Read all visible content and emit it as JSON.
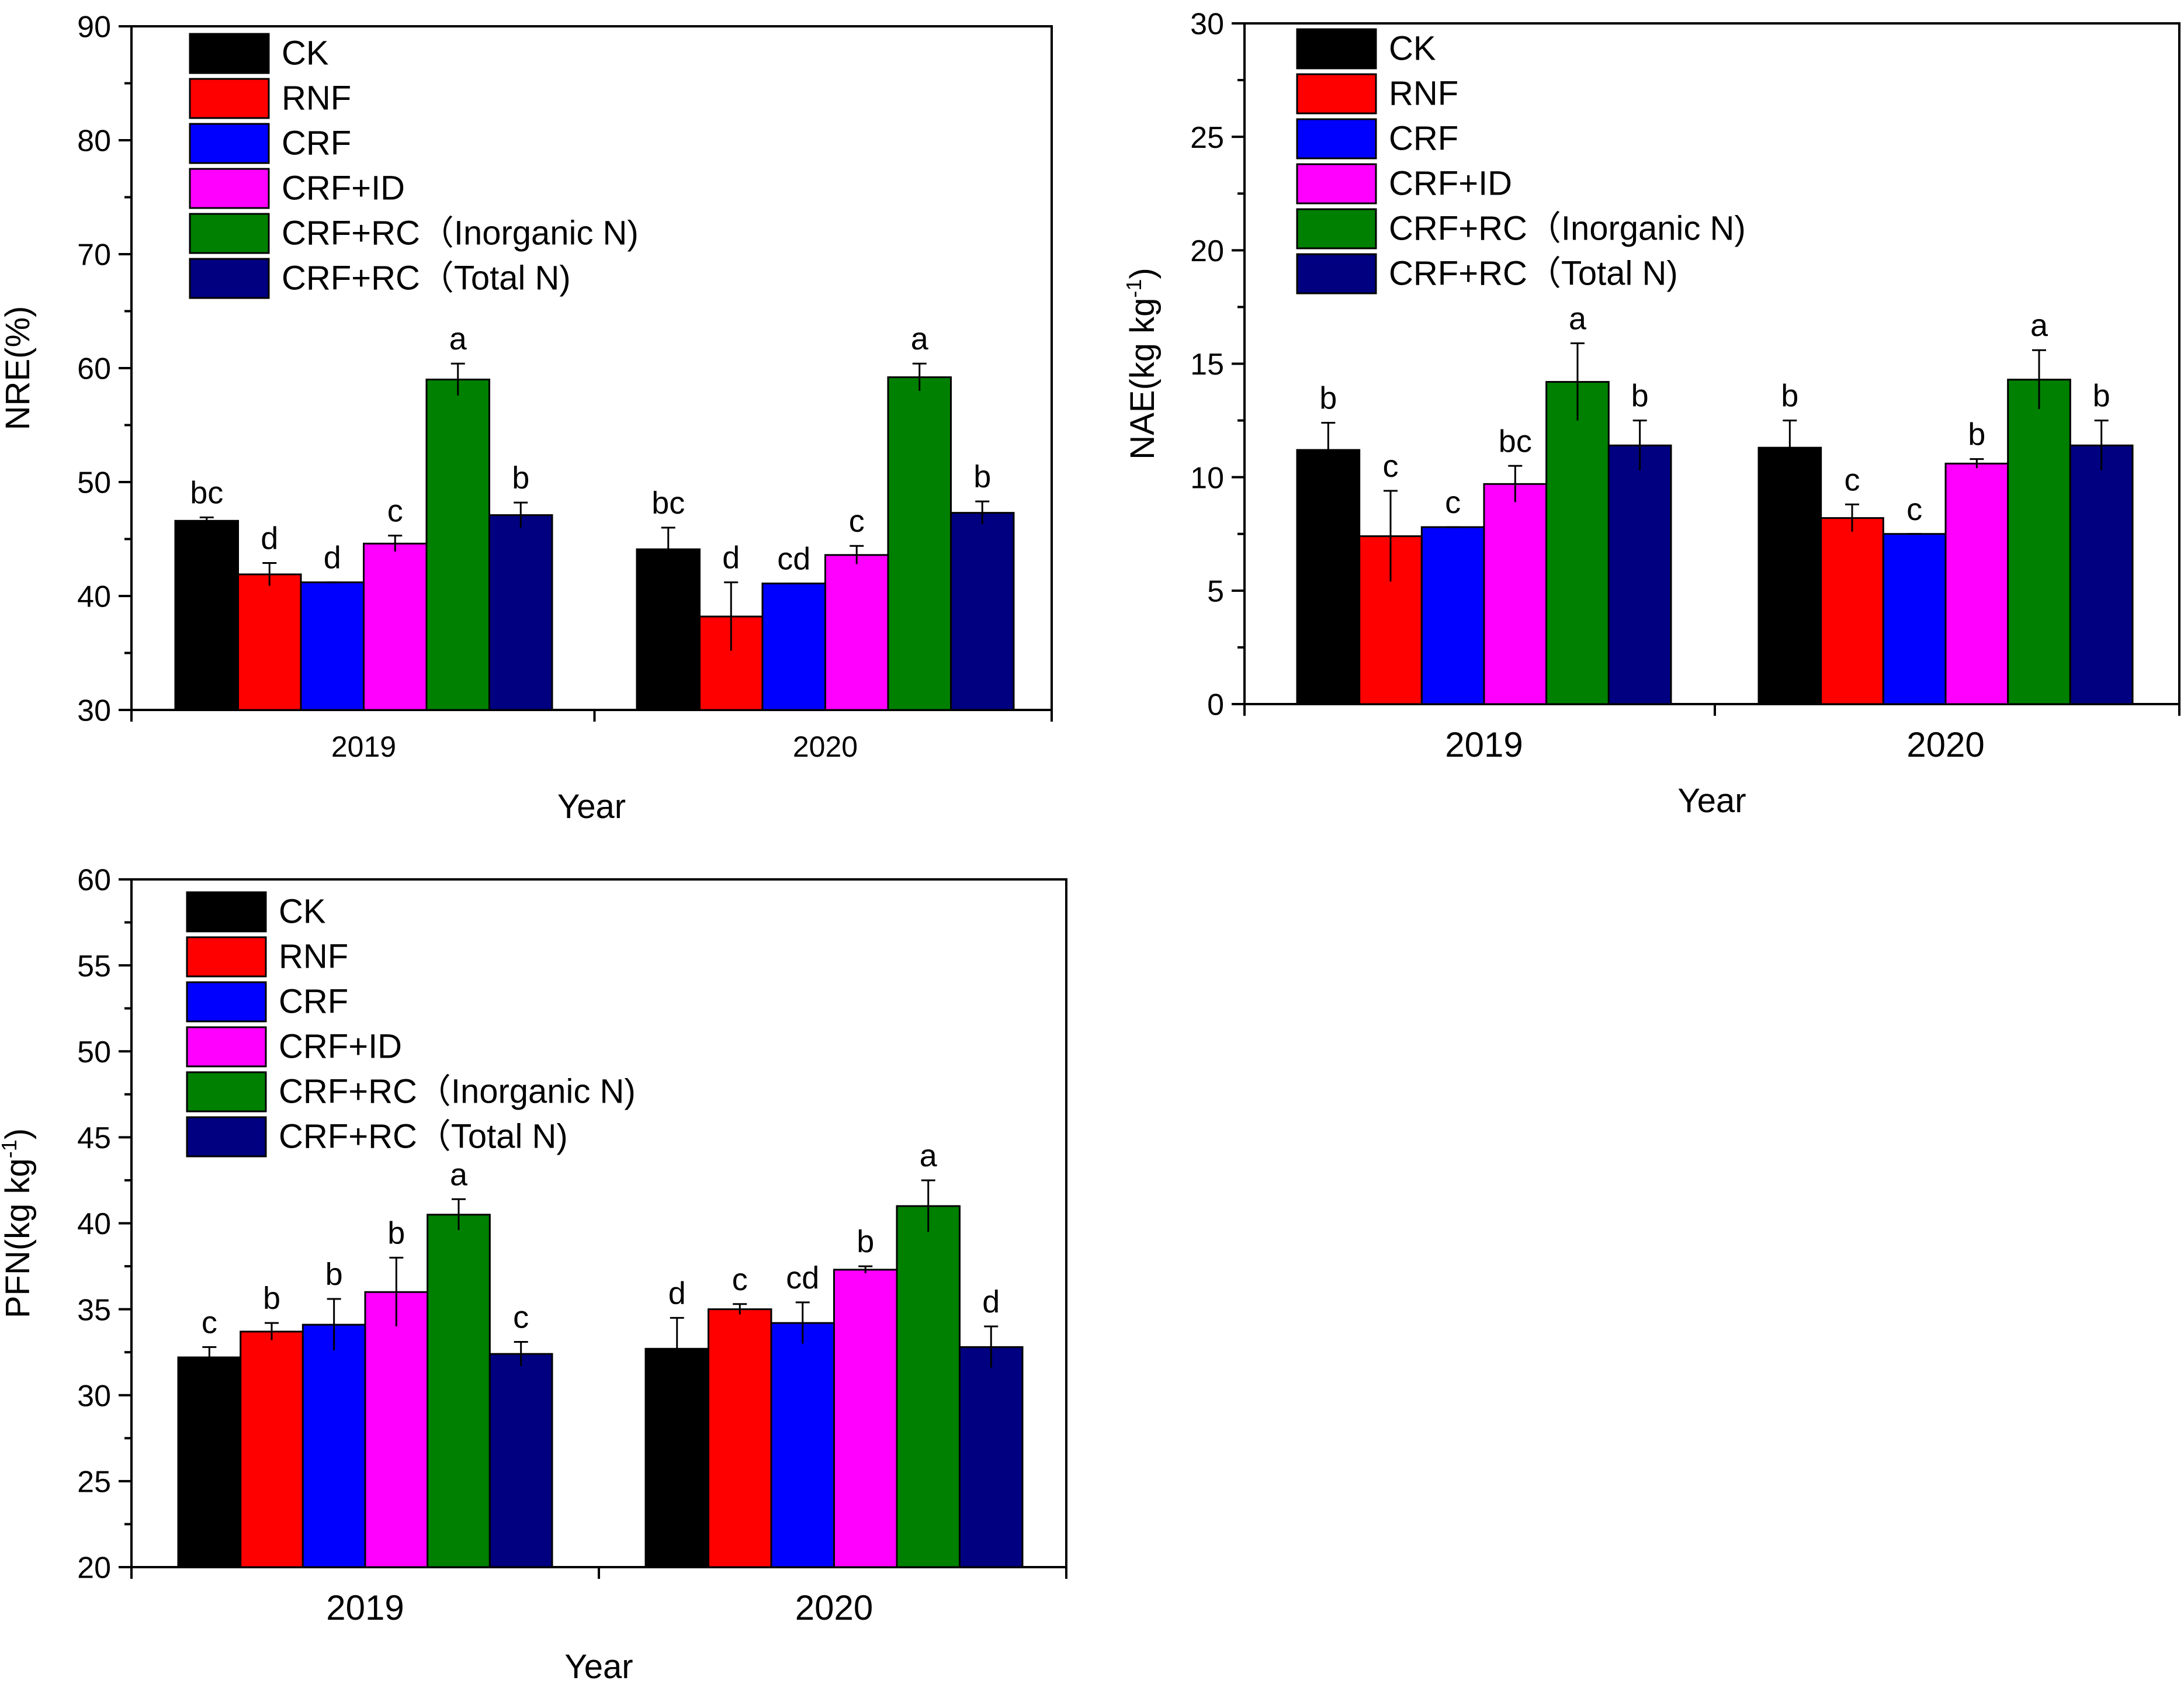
{
  "colors": {
    "CK": "#000000",
    "RNF": "#ff0000",
    "CRF": "#0000ff",
    "CRF+ID": "#ff00ff",
    "CRF+RC_inorganic": "#008000",
    "CRF+RC_total": "#000080"
  },
  "chart_data": [
    {
      "id": "nre",
      "type": "bar",
      "ylabel": "NRE(%)",
      "ylabel_sup": "",
      "ylabel_tail": "",
      "xlabel": "Year",
      "categories": [
        "2019",
        "2020"
      ],
      "ylim": [
        30,
        90
      ],
      "yticks": [
        30,
        40,
        50,
        60,
        70,
        80,
        90
      ],
      "legend": [
        "CK",
        "RNF",
        "CRF",
        "CRF+ID",
        "CRF+RC（Inorganic N)",
        "CRF+RC（Total N)"
      ],
      "series": [
        {
          "name": "CK",
          "values": [
            46.6,
            44.1
          ],
          "errors": [
            0.3,
            1.9
          ],
          "letters": [
            "bc",
            "bc"
          ]
        },
        {
          "name": "RNF",
          "values": [
            41.9,
            38.2
          ],
          "errors": [
            1.0,
            3.0
          ],
          "letters": [
            "d",
            "d"
          ]
        },
        {
          "name": "CRF",
          "values": [
            41.2,
            41.1
          ],
          "errors": [
            0.0,
            0.0
          ],
          "letters": [
            "d",
            "cd"
          ]
        },
        {
          "name": "CRF+ID",
          "values": [
            44.6,
            43.6
          ],
          "errors": [
            0.7,
            0.8
          ],
          "letters": [
            "c",
            "c"
          ]
        },
        {
          "name": "CRF+RC（Inorganic N)",
          "values": [
            59.0,
            59.2
          ],
          "errors": [
            1.4,
            1.2
          ],
          "letters": [
            "a",
            "a"
          ]
        },
        {
          "name": "CRF+RC（Total N)",
          "values": [
            47.1,
            47.3
          ],
          "errors": [
            1.1,
            1.0
          ],
          "letters": [
            "b",
            "b"
          ]
        }
      ]
    },
    {
      "id": "nae",
      "type": "bar",
      "ylabel": "NAE(kg kg",
      "ylabel_sup": "-1",
      "ylabel_tail": ")",
      "xlabel": "Year",
      "categories": [
        "2019",
        "2020"
      ],
      "ylim": [
        0,
        30
      ],
      "yticks": [
        0,
        5,
        10,
        15,
        20,
        25,
        30
      ],
      "legend": [
        "CK",
        "RNF",
        "CRF",
        "CRF+ID",
        "CRF+RC（Inorganic N)",
        "CRF+RC（Total N)"
      ],
      "series": [
        {
          "name": "CK",
          "values": [
            11.2,
            11.3
          ],
          "errors": [
            1.2,
            1.2
          ],
          "letters": [
            "b",
            "b"
          ]
        },
        {
          "name": "RNF",
          "values": [
            7.4,
            8.2
          ],
          "errors": [
            2.0,
            0.6
          ],
          "letters": [
            "c",
            "c"
          ]
        },
        {
          "name": "CRF",
          "values": [
            7.8,
            7.5
          ],
          "errors": [
            0.0,
            0.0
          ],
          "letters": [
            "c",
            "c"
          ]
        },
        {
          "name": "CRF+ID",
          "values": [
            9.7,
            10.6
          ],
          "errors": [
            0.8,
            0.2
          ],
          "letters": [
            "bc",
            "b"
          ]
        },
        {
          "name": "CRF+RC（Inorganic N)",
          "values": [
            14.2,
            14.3
          ],
          "errors": [
            1.7,
            1.3
          ],
          "letters": [
            "a",
            "a"
          ]
        },
        {
          "name": "CRF+RC（Total N)",
          "values": [
            11.4,
            11.4
          ],
          "errors": [
            1.1,
            1.1
          ],
          "letters": [
            "b",
            "b"
          ]
        }
      ]
    },
    {
      "id": "pfn",
      "type": "bar",
      "ylabel": "PFN(kg kg",
      "ylabel_sup": "-1",
      "ylabel_tail": ")",
      "xlabel": "Year",
      "categories": [
        "2019",
        "2020"
      ],
      "ylim": [
        20,
        60
      ],
      "yticks": [
        20,
        25,
        30,
        35,
        40,
        45,
        50,
        55,
        60
      ],
      "legend": [
        "CK",
        "RNF",
        "CRF",
        "CRF+ID",
        "CRF+RC（Inorganic N)",
        "CRF+RC（Total N)"
      ],
      "series": [
        {
          "name": "CK",
          "values": [
            32.2,
            32.7
          ],
          "errors": [
            0.6,
            1.8
          ],
          "letters": [
            "c",
            "d"
          ]
        },
        {
          "name": "RNF",
          "values": [
            33.7,
            35.0
          ],
          "errors": [
            0.5,
            0.3
          ],
          "letters": [
            "b",
            "c"
          ]
        },
        {
          "name": "CRF",
          "values": [
            34.1,
            34.2
          ],
          "errors": [
            1.5,
            1.2
          ],
          "letters": [
            "b",
            "cd"
          ]
        },
        {
          "name": "CRF+ID",
          "values": [
            36.0,
            37.3
          ],
          "errors": [
            2.0,
            0.2
          ],
          "letters": [
            "b",
            "b"
          ]
        },
        {
          "name": "CRF+RC（Inorganic N)",
          "values": [
            40.5,
            41.0
          ],
          "errors": [
            0.9,
            1.5
          ],
          "letters": [
            "a",
            "a"
          ]
        },
        {
          "name": "CRF+RC（Total N)",
          "values": [
            32.4,
            32.8
          ],
          "errors": [
            0.7,
            1.2
          ],
          "letters": [
            "c",
            "d"
          ]
        }
      ]
    }
  ]
}
